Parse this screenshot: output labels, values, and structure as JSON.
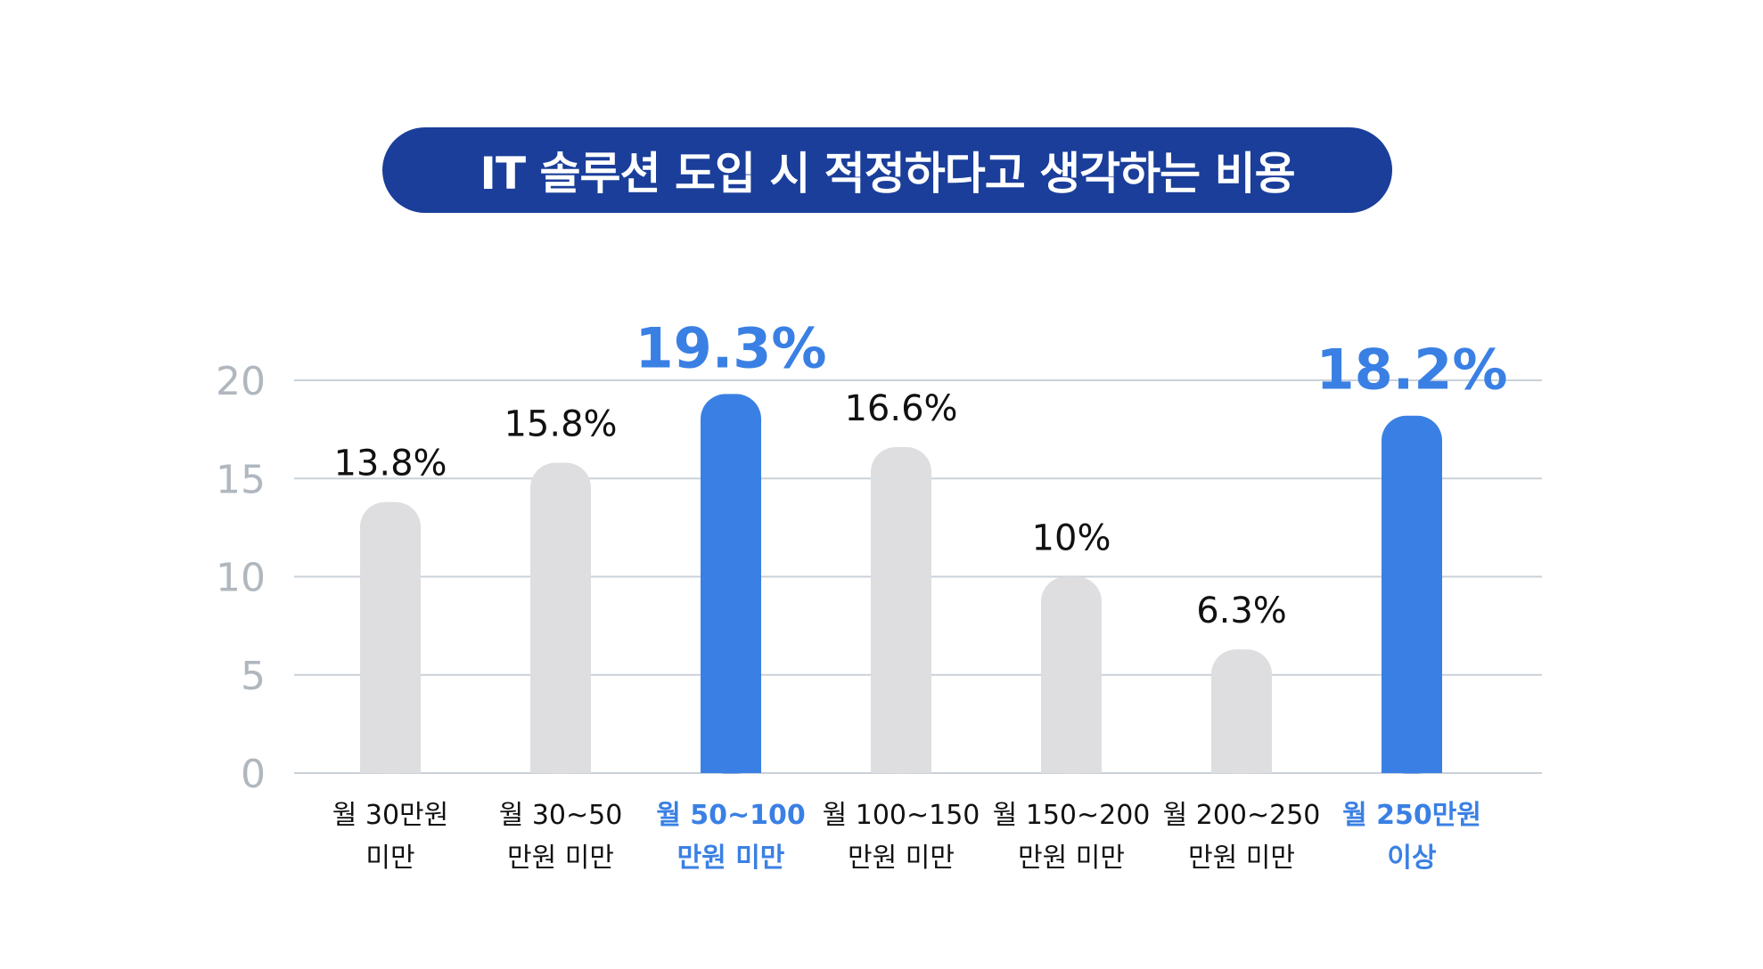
{
  "title": "IT 솔루션 도입 시 적정하다고 생각하는 비용",
  "colors": {
    "title_bg": "#1a3e9a",
    "highlight": "#3a80e4",
    "bar": "#dedde0",
    "grid": "#c9d1d9",
    "axis_text": "#b0b7be",
    "label_text": "#111111"
  },
  "chart_data": {
    "type": "bar",
    "title": "IT 솔루션 도입 시 적정하다고 생각하는 비용",
    "xlabel": "",
    "ylabel": "",
    "ylim": [
      0,
      20
    ],
    "yticks": [
      0,
      5,
      10,
      15,
      20
    ],
    "grid": true,
    "categories": [
      [
        "월 30만원",
        "미만"
      ],
      [
        "월 30~50",
        "만원 미만"
      ],
      [
        "월 50~100",
        "만원 미만"
      ],
      [
        "월 100~150",
        "만원 미만"
      ],
      [
        "월 150~200",
        "만원 미만"
      ],
      [
        "월 200~250",
        "만원 미만"
      ],
      [
        "월 250만원",
        "이상"
      ]
    ],
    "values": [
      13.8,
      15.8,
      19.3,
      16.6,
      10,
      6.3,
      18.2
    ],
    "value_labels": [
      "13.8%",
      "15.8%",
      "19.3%",
      "16.6%",
      "10%",
      "6.3%",
      "18.2%"
    ],
    "highlighted": [
      false,
      false,
      true,
      false,
      false,
      false,
      true
    ]
  }
}
